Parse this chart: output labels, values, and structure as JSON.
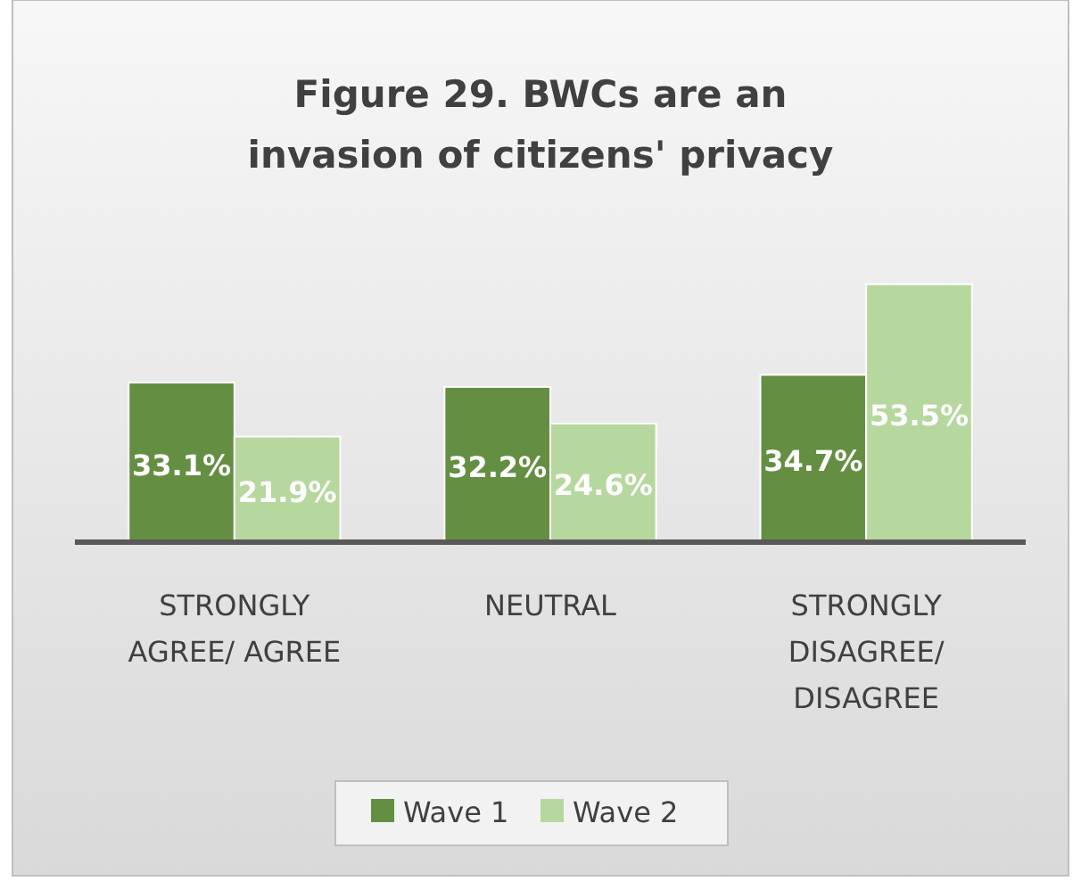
{
  "chart_data": {
    "type": "bar",
    "title": "Figure 29. BWCs are an invasion of citizens' privacy",
    "categories": [
      "STRONGLY AGREE/ AGREE",
      "NEUTRAL",
      "STRONGLY DISAGREE/ DISAGREE"
    ],
    "series": [
      {
        "name": "Wave 1",
        "color": "#648f42",
        "values": [
          33.1,
          32.2,
          34.7
        ],
        "value_labels": [
          "33.1%",
          "32.2%",
          "34.7%"
        ]
      },
      {
        "name": "Wave 2",
        "color": "#b6d89e",
        "values": [
          21.9,
          24.6,
          53.5
        ],
        "value_labels": [
          "21.9%",
          "24.6%",
          "53.5%"
        ]
      }
    ],
    "legend": "bottom",
    "tick_labels": "x"
  }
}
